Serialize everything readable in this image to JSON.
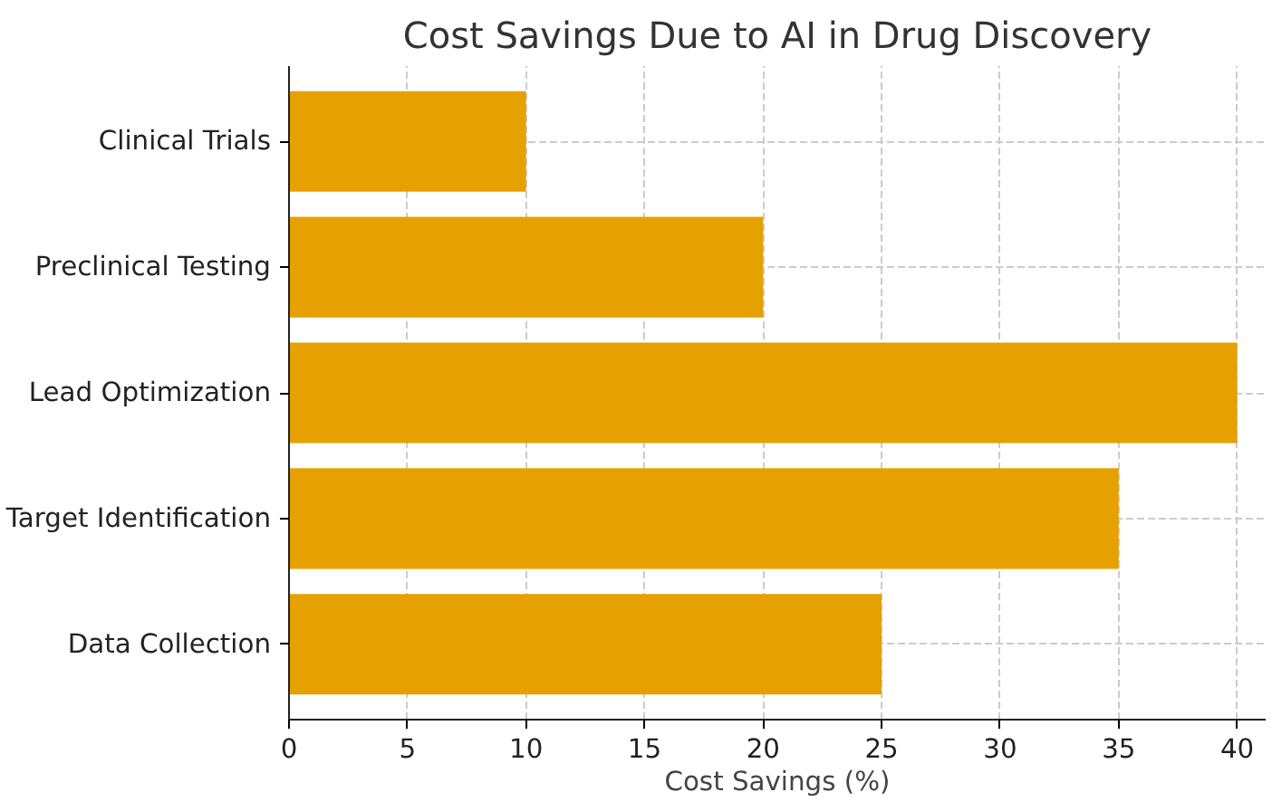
{
  "chart_data": {
    "type": "bar",
    "orientation": "horizontal",
    "title": "Cost Savings Due to AI in Drug Discovery",
    "xlabel": "Cost Savings (%)",
    "categories": [
      "Clinical Trials",
      "Preclinical Testing",
      "Lead Optimization",
      "Target Identification",
      "Data Collection"
    ],
    "values": [
      10,
      20,
      40,
      35,
      25
    ],
    "color": "#e6a000",
    "xlim": [
      0,
      41.2
    ],
    "xticks": [
      0,
      5,
      10,
      15,
      20,
      25,
      30,
      35,
      40
    ],
    "grid": true
  }
}
